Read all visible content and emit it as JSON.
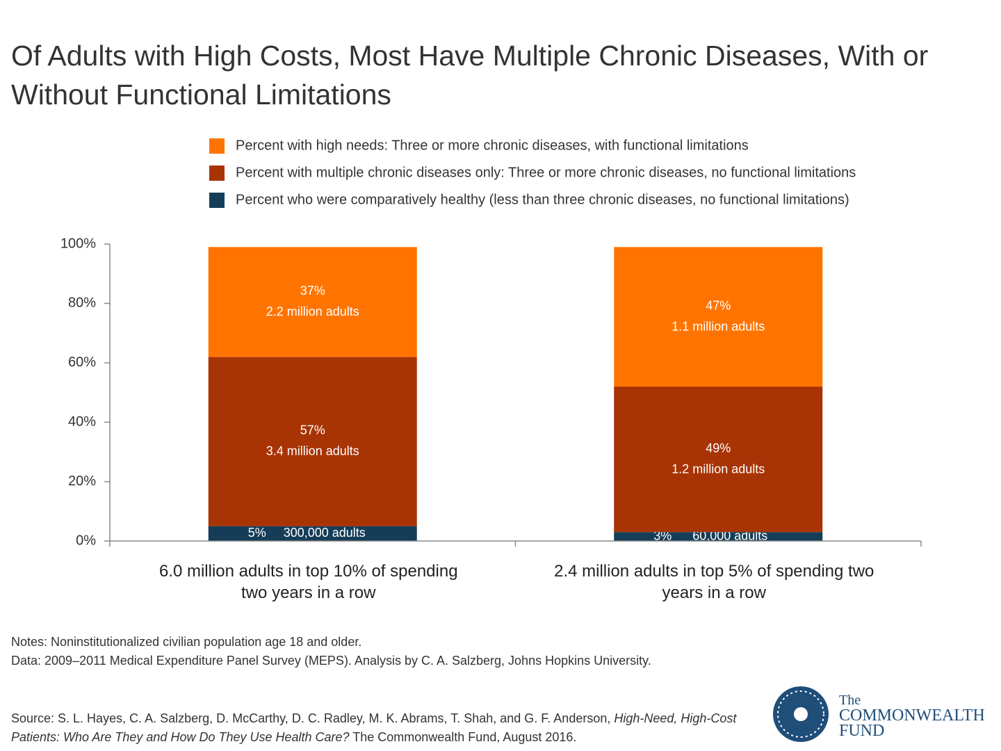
{
  "title": "Of Adults with High Costs, Most Have Multiple Chronic Diseases, With or Without Functional Limitations",
  "chart_data": {
    "type": "stacked_bar",
    "categories": [
      "6.0 million adults in top 10% of spending two years in a row",
      "2.4 million adults in top 5% of spending two years in a row"
    ],
    "series": [
      {
        "name": "Percent who were comparatively healthy (less than three chronic diseases, no functional limitations)",
        "color": "#163d57",
        "values": [
          5,
          3
        ],
        "value_labels": [
          "5%",
          "3%"
        ],
        "adult_labels": [
          "300,000 adults",
          "60,000 adults"
        ]
      },
      {
        "name": "Percent with multiple chronic diseases only: Three or more chronic diseases, no functional limitations",
        "color": "#a83405",
        "values": [
          57,
          49
        ],
        "value_labels": [
          "57%",
          "49%"
        ],
        "adult_labels": [
          "3.4 million adults",
          "1.2 million adults"
        ]
      },
      {
        "name": "Percent with high needs: Three or more chronic diseases, with functional limitations",
        "color": "#ff7400",
        "values": [
          37,
          47
        ],
        "value_labels": [
          "37%",
          "47%"
        ],
        "adult_labels": [
          "2.2 million adults",
          "1.1 million adults"
        ]
      }
    ],
    "ylim": [
      0,
      100
    ],
    "yticks": [
      {
        "value": 0,
        "label": "0%"
      },
      {
        "value": 20,
        "label": "20%"
      },
      {
        "value": 40,
        "label": "40%"
      },
      {
        "value": 60,
        "label": "60%"
      },
      {
        "value": 80,
        "label": "80%"
      },
      {
        "value": 100,
        "label": "100%"
      }
    ],
    "legend": "top"
  },
  "notes": [
    "Notes: Noninstitutionalized civilian population age 18 and older.",
    "Data: 2009–2011 Medical Expenditure Panel Survey (MEPS). Analysis by C. A. Salzberg, Johns Hopkins University."
  ],
  "source": [
    "Source: S. L. Hayes, C. A. Salzberg, D. McCarthy, D. C. Radley, M. K. Abrams, T. Shah, and G. F. Anderson, ",
    "High-Need, High-Cost Patients: Who Are They and How Do They Use Health Care?",
    " The Commonwealth Fund, August 2016."
  ],
  "logo": [
    "The",
    "COMMONWEALTH",
    "FUND"
  ]
}
